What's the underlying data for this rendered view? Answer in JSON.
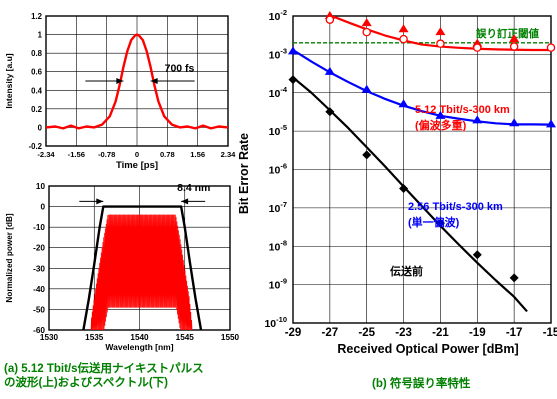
{
  "colors": {
    "red": "#ff0000",
    "blue": "#0000ff",
    "black": "#000000",
    "green": "#008000"
  },
  "captions": {
    "a_line1": "(a) 5.12 Tbit/s伝送用ナイキストパルス",
    "a_line2": "の波形(上)およびスペクトル(下)",
    "b": "(b) 符号誤り率特性"
  },
  "chart_data": [
    {
      "type": "line",
      "id": "pulse",
      "xlabel": "Time [ps]",
      "ylabel": "Intensity [a.u]",
      "xlim": [
        -2.34,
        2.34
      ],
      "ylim": [
        -0.2,
        1.2
      ],
      "x_ticks": [
        "-2.34",
        "-1.56",
        "-0.78",
        "0",
        "0.78",
        "1.56",
        "2.34"
      ],
      "x_tick_values": [
        -2.34,
        -1.56,
        -0.78,
        0,
        0.78,
        1.56,
        2.34
      ],
      "y_ticks": [
        "-0.2",
        "0",
        "0.2",
        "0.4",
        "0.6",
        "0.8",
        "1",
        "1.2"
      ],
      "y_tick_values": [
        -0.2,
        0,
        0.2,
        0.4,
        0.6,
        0.8,
        1,
        1.2
      ],
      "grid": true,
      "annotation": "700 fs",
      "annotation_fwhm_ps": 0.7,
      "series": [
        {
          "color": "#ff0000",
          "x": [
            -2.34,
            -2.1,
            -1.9,
            -1.7,
            -1.5,
            -1.3,
            -1.1,
            -0.9,
            -0.7,
            -0.55,
            -0.45,
            -0.35,
            -0.25,
            -0.15,
            -0.05,
            0,
            0.05,
            0.15,
            0.25,
            0.35,
            0.45,
            0.55,
            0.7,
            0.9,
            1.1,
            1.3,
            1.5,
            1.7,
            1.9,
            2.1,
            2.34
          ],
          "y": [
            0.0,
            0.01,
            -0.01,
            0.02,
            -0.01,
            0.01,
            0.0,
            0.03,
            0.12,
            0.28,
            0.45,
            0.65,
            0.82,
            0.94,
            0.99,
            1.0,
            0.99,
            0.94,
            0.82,
            0.65,
            0.45,
            0.28,
            0.12,
            0.03,
            0.0,
            0.01,
            -0.01,
            0.02,
            -0.01,
            0.01,
            0.0
          ]
        }
      ]
    },
    {
      "type": "line",
      "id": "spectrum",
      "xlabel": "Wavelength [nm]",
      "ylabel": "Normalized power [dB]",
      "xlim": [
        1530,
        1550
      ],
      "ylim": [
        -60,
        10
      ],
      "x_ticks": [
        "1530",
        "1535",
        "1540",
        "1545",
        "1550"
      ],
      "x_tick_values": [
        1530,
        1535,
        1540,
        1545,
        1550
      ],
      "y_ticks": [
        "-60",
        "-50",
        "-40",
        "-30",
        "-20",
        "-10",
        "0",
        "10"
      ],
      "y_tick_values": [
        -60,
        -50,
        -40,
        -30,
        -20,
        -10,
        0,
        10
      ],
      "grid": true,
      "annotation": "8.4 nm",
      "annotation_bandwidth_nm": 8.4,
      "series": [
        {
          "color": "#000000",
          "x": [
            1533.8,
            1534.4,
            1535.0,
            1535.6,
            1536.0,
            1544.6,
            1545.0,
            1545.6,
            1546.2,
            1546.8
          ],
          "y": [
            -60,
            -45,
            -28,
            -10,
            0,
            0,
            -10,
            -28,
            -45,
            -60
          ]
        },
        {
          "color": "#ff0000",
          "x": [
            1534.6,
            1535.0,
            1535.5,
            1536.0,
            1536.5,
            1544.0,
            1544.5,
            1545.0,
            1545.5,
            1545.8
          ],
          "y": [
            -57,
            -44,
            -30,
            -16,
            -4,
            -4,
            -16,
            -30,
            -44,
            -57
          ]
        }
      ]
    },
    {
      "type": "line",
      "id": "ber",
      "xlabel": "Received Optical Power [dBm]",
      "ylabel": "Bit Error Rate",
      "xlim": [
        -29,
        -15
      ],
      "ylim_log10": [
        -10,
        -2
      ],
      "log_y": true,
      "x_ticks": [
        "-29",
        "-27",
        "-25",
        "-23",
        "-21",
        "-19",
        "-17",
        "-15"
      ],
      "x_tick_values": [
        -29,
        -27,
        -25,
        -23,
        -21,
        -19,
        -17,
        -15
      ],
      "y_ticks": [
        {
          "base": "10",
          "exp": "-10",
          "v": -10
        },
        {
          "base": "10",
          "exp": "-9",
          "v": -9
        },
        {
          "base": "10",
          "exp": "-8",
          "v": -8
        },
        {
          "base": "10",
          "exp": "-7",
          "v": -7
        },
        {
          "base": "10",
          "exp": "-6",
          "v": -6
        },
        {
          "base": "10",
          "exp": "-5",
          "v": -5
        },
        {
          "base": "10",
          "exp": "-4",
          "v": -4
        },
        {
          "base": "10",
          "exp": "-3",
          "v": -3
        },
        {
          "base": "10",
          "exp": "-2",
          "v": -2
        }
      ],
      "grid": true,
      "threshold": {
        "label": "誤り訂正閾値",
        "value": 0.002,
        "color": "#008000"
      },
      "series": [
        {
          "name": "5.12 Tbit/s-300 km",
          "name2": "(偏波多重)",
          "color": "#ff0000",
          "markers_filled": [
            [
              -27,
              0.01
            ],
            [
              -25,
              0.0065
            ],
            [
              -23,
              0.0045
            ],
            [
              -21,
              0.0038
            ],
            [
              -19,
              0.0019
            ],
            [
              -17,
              0.0025
            ]
          ],
          "markers_open": [
            [
              -27,
              0.008
            ],
            [
              -25,
              0.0038
            ],
            [
              -23,
              0.0025
            ],
            [
              -21,
              0.0019
            ],
            [
              -19,
              0.0015
            ],
            [
              -17,
              0.0016
            ],
            [
              -15,
              0.0015
            ]
          ],
          "fit_x": [
            -27,
            -26,
            -25,
            -24,
            -23,
            -22,
            -21,
            -20,
            -19,
            -18,
            -17,
            -16,
            -15
          ],
          "fit_y": [
            0.0105,
            0.0068,
            0.0045,
            0.0031,
            0.0023,
            0.0018,
            0.0016,
            0.00148,
            0.0014,
            0.00135,
            0.00132,
            0.0013,
            0.0013
          ]
        },
        {
          "name": "2.56 Tbit/s-300 km",
          "name2": "(単一偏波)",
          "color": "#0000ff",
          "markers": [
            [
              -29,
              0.0012
            ],
            [
              -27,
              0.00035
            ],
            [
              -25,
              0.00012
            ],
            [
              -23,
              5e-05
            ],
            [
              -21,
              2.5e-05
            ],
            [
              -19,
              1.9e-05
            ],
            [
              -17,
              1.6e-05
            ],
            [
              -15,
              1.5e-05
            ]
          ],
          "fit_x": [
            -29,
            -28,
            -27,
            -26,
            -25,
            -24,
            -23,
            -22,
            -21,
            -20,
            -19,
            -18,
            -17,
            -16,
            -15
          ],
          "fit_y": [
            0.0013,
            0.00065,
            0.00034,
            0.00019,
            0.00011,
            6.9e-05,
            4.6e-05,
            3.3e-05,
            2.5e-05,
            2.1e-05,
            1.8e-05,
            1.6e-05,
            1.5e-05,
            1.5e-05,
            1.48e-05
          ]
        },
        {
          "name": "伝送前",
          "color": "#000000",
          "markers": [
            [
              -29,
              0.00022
            ],
            [
              -27,
              3.2e-05
            ],
            [
              -25,
              2.4e-06
            ],
            [
              -23,
              3.2e-07
            ],
            [
              -21,
              4e-08
            ],
            [
              -19,
              6e-09
            ],
            [
              -17,
              1.5e-09
            ]
          ],
          "fit_x": [
            -29,
            -28,
            -27,
            -26,
            -25,
            -24,
            -23,
            -22,
            -21,
            -20,
            -19,
            -18,
            -17,
            -16.3
          ],
          "fit_y": [
            0.00025,
            0.0001,
            3.5e-05,
            1.2e-05,
            3.8e-06,
            1.2e-06,
            3.6e-07,
            1.1e-07,
            3.4e-08,
            1.1e-08,
            3.7e-09,
            1.3e-09,
            4.8e-10,
            2e-10
          ]
        }
      ]
    }
  ]
}
